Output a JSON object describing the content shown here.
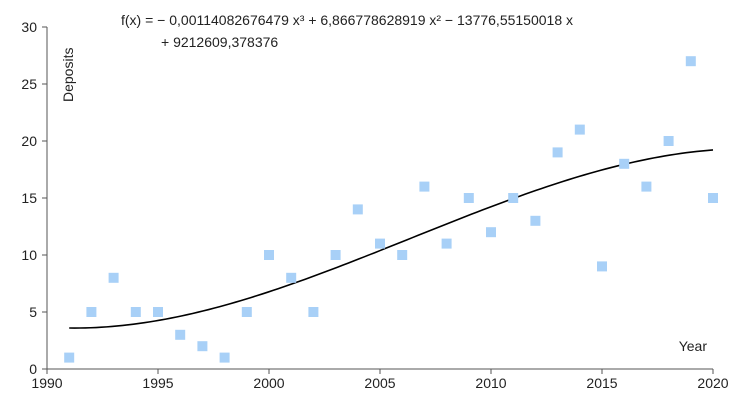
{
  "chart_data": {
    "type": "scatter",
    "xlabel": "Year",
    "ylabel": "Deposits",
    "xlim": [
      1990,
      2020
    ],
    "ylim": [
      0,
      30
    ],
    "xticks": [
      1990,
      1995,
      2000,
      2005,
      2010,
      2015,
      2020
    ],
    "yticks": [
      0,
      5,
      10,
      15,
      20,
      25,
      30
    ],
    "grid": false,
    "marker_color": "#a8d0f7",
    "trendline_color": "#000000",
    "points": [
      {
        "x": 1991,
        "y": 1
      },
      {
        "x": 1992,
        "y": 5
      },
      {
        "x": 1993,
        "y": 8
      },
      {
        "x": 1994,
        "y": 5
      },
      {
        "x": 1995,
        "y": 5
      },
      {
        "x": 1996,
        "y": 3
      },
      {
        "x": 1997,
        "y": 2
      },
      {
        "x": 1998,
        "y": 1
      },
      {
        "x": 1999,
        "y": 5
      },
      {
        "x": 2000,
        "y": 10
      },
      {
        "x": 2001,
        "y": 8
      },
      {
        "x": 2002,
        "y": 5
      },
      {
        "x": 2003,
        "y": 10
      },
      {
        "x": 2004,
        "y": 14
      },
      {
        "x": 2005,
        "y": 11
      },
      {
        "x": 2006,
        "y": 10
      },
      {
        "x": 2007,
        "y": 16
      },
      {
        "x": 2008,
        "y": 11
      },
      {
        "x": 2009,
        "y": 15
      },
      {
        "x": 2010,
        "y": 12
      },
      {
        "x": 2011,
        "y": 15
      },
      {
        "x": 2012,
        "y": 13
      },
      {
        "x": 2013,
        "y": 19
      },
      {
        "x": 2014,
        "y": 21
      },
      {
        "x": 2015,
        "y": 9
      },
      {
        "x": 2016,
        "y": 18
      },
      {
        "x": 2017,
        "y": 16
      },
      {
        "x": 2018,
        "y": 20
      },
      {
        "x": 2019,
        "y": 27
      },
      {
        "x": 2020,
        "y": 15
      }
    ],
    "trendline": {
      "type": "polynomial",
      "degree": 3,
      "x_range": [
        1991,
        2020
      ],
      "coefficients": [
        -0.00114082676479,
        6.866778628919,
        -13776.55150018,
        9212609.378376
      ],
      "equation_line1": "f(x) = − 0,00114082676479 x³ + 6,866778628919 x² − 13776,55150018 x",
      "equation_line2": "+ 9212609,378376"
    }
  }
}
